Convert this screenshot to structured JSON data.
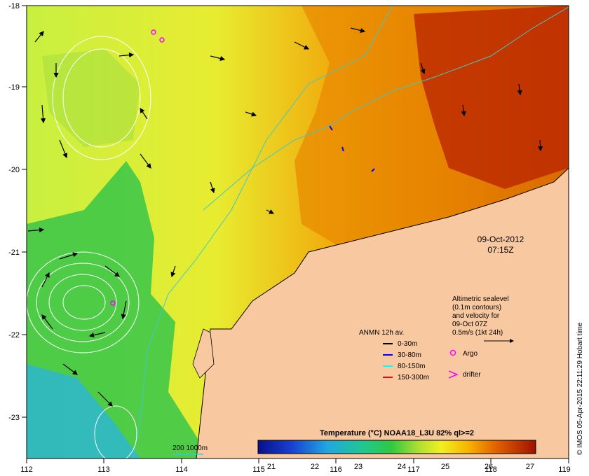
{
  "map": {
    "date": "09-Oct-2012",
    "time": "07:15Z",
    "x_ticks": [
      "112",
      "113",
      "114",
      "115",
      "116",
      "117",
      "118",
      "119"
    ],
    "y_ticks": [
      "-18",
      "-19",
      "-20",
      "-21",
      "-22",
      "-23"
    ],
    "bathymetry_label": "200  1000m",
    "credit": "© IMOS 05-Apr-2015 22:11:29 Hobart time",
    "colors": {
      "land": "#f8c8a0",
      "contour_200": "#40c8c8",
      "sealevel_contour": "#ffffff",
      "argo": "#ff00ff",
      "drifter": "#ff00ff"
    }
  },
  "altimetry_note": {
    "lines": [
      "Altimetric sealevel",
      "(0.1m contours)",
      "and velocity for",
      "09-Oct 07Z",
      "0.5m/s (1kt 24h)"
    ]
  },
  "anmn": {
    "title": "ANMN 12h av.",
    "items": [
      {
        "label": "0-30m",
        "color": "#000000"
      },
      {
        "label": "30-80m",
        "color": "#0000ff"
      },
      {
        "label": "80-150m",
        "color": "#00ffff"
      },
      {
        "label": "150-300m",
        "color": "#ff0000"
      }
    ]
  },
  "markers": {
    "argo": "Argo",
    "drifter": "drifter"
  },
  "colorbar": {
    "title": "Temperature (°C) NOAA18_L3U 82% ql>=2",
    "ticks": [
      "21",
      "22",
      "23",
      "24",
      "25",
      "26",
      "27"
    ]
  }
}
